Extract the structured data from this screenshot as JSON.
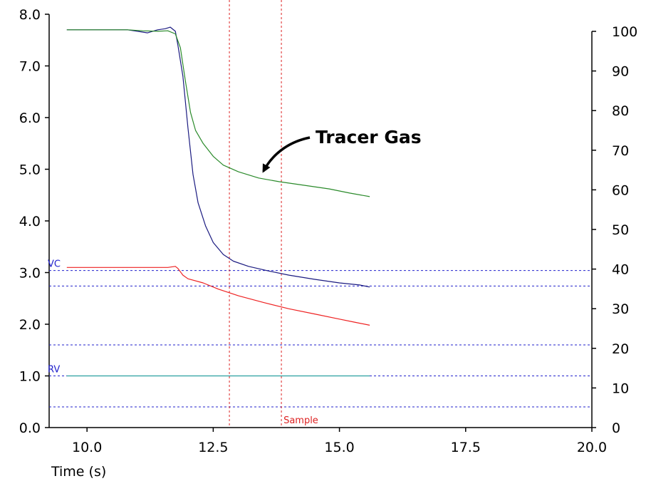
{
  "chart_data": {
    "type": "line",
    "title": "",
    "xlabel": "Time (s)",
    "ylabel": "",
    "xlim": [
      9.25,
      20.0
    ],
    "ylim_left": [
      0.0,
      8.0
    ],
    "ylim_right": [
      0,
      100
    ],
    "x_ticks": [
      "10.0",
      "12.5",
      "15.0",
      "17.5",
      "20.0"
    ],
    "y_left_ticks": [
      "0.0",
      "1.0",
      "2.0",
      "3.0",
      "4.0",
      "5.0",
      "6.0",
      "7.0",
      "8.0"
    ],
    "y_right_ticks": [
      "0",
      "10",
      "20",
      "30",
      "40",
      "50",
      "60",
      "70",
      "80",
      "90",
      "100"
    ],
    "reference_lines": [
      {
        "label": "VC",
        "y": 3.04,
        "color": "#2222cc"
      },
      {
        "label": "",
        "y": 2.74,
        "color": "#2222cc"
      },
      {
        "label": "",
        "y": 1.6,
        "color": "#2222cc"
      },
      {
        "label": "RV",
        "y": 1.0,
        "color": "#2222cc"
      },
      {
        "label": "",
        "y": 0.4,
        "color": "#2222cc"
      }
    ],
    "vertical_markers": [
      {
        "label": "",
        "x": 12.82,
        "color": "#dd2222"
      },
      {
        "label": "Sample",
        "x": 13.85,
        "color": "#dd2222"
      }
    ],
    "series": [
      {
        "color": "#1a1a80",
        "points": [
          [
            9.6,
            7.7
          ],
          [
            10.8,
            7.7
          ],
          [
            11.0,
            7.67
          ],
          [
            11.2,
            7.64
          ],
          [
            11.4,
            7.7
          ],
          [
            11.55,
            7.72
          ],
          [
            11.65,
            7.75
          ],
          [
            11.75,
            7.67
          ],
          [
            11.8,
            7.4
          ],
          [
            11.9,
            6.8
          ],
          [
            12.0,
            5.8
          ],
          [
            12.1,
            4.9
          ],
          [
            12.2,
            4.35
          ],
          [
            12.35,
            3.9
          ],
          [
            12.5,
            3.58
          ],
          [
            12.7,
            3.35
          ],
          [
            12.9,
            3.22
          ],
          [
            13.2,
            3.12
          ],
          [
            13.6,
            3.03
          ],
          [
            14.0,
            2.95
          ],
          [
            14.5,
            2.87
          ],
          [
            15.0,
            2.8
          ],
          [
            15.4,
            2.76
          ],
          [
            15.6,
            2.72
          ]
        ]
      },
      {
        "color": "#2a8a2a",
        "points": [
          [
            9.6,
            7.7
          ],
          [
            10.8,
            7.7
          ],
          [
            11.1,
            7.68
          ],
          [
            11.4,
            7.67
          ],
          [
            11.6,
            7.68
          ],
          [
            11.75,
            7.62
          ],
          [
            11.85,
            7.35
          ],
          [
            11.95,
            6.7
          ],
          [
            12.05,
            6.1
          ],
          [
            12.15,
            5.75
          ],
          [
            12.3,
            5.5
          ],
          [
            12.5,
            5.25
          ],
          [
            12.7,
            5.08
          ],
          [
            13.0,
            4.95
          ],
          [
            13.4,
            4.83
          ],
          [
            13.8,
            4.76
          ],
          [
            14.3,
            4.69
          ],
          [
            14.8,
            4.62
          ],
          [
            15.2,
            4.54
          ],
          [
            15.6,
            4.47
          ]
        ]
      },
      {
        "color": "#ee2222",
        "points": [
          [
            9.6,
            3.1
          ],
          [
            11.6,
            3.1
          ],
          [
            11.75,
            3.12
          ],
          [
            11.8,
            3.08
          ],
          [
            11.9,
            2.95
          ],
          [
            12.0,
            2.88
          ],
          [
            12.3,
            2.8
          ],
          [
            12.6,
            2.68
          ],
          [
            13.0,
            2.55
          ],
          [
            13.5,
            2.42
          ],
          [
            14.0,
            2.3
          ],
          [
            14.5,
            2.2
          ],
          [
            15.0,
            2.1
          ],
          [
            15.3,
            2.04
          ],
          [
            15.6,
            1.98
          ]
        ]
      },
      {
        "color": "#2aa0a0",
        "points": [
          [
            9.6,
            1.0
          ],
          [
            15.6,
            1.0
          ]
        ]
      }
    ],
    "annotations": [
      {
        "text": "Tracer Gas",
        "x": 14.8,
        "y": 5.55,
        "arrow_to": [
          13.45,
          4.92
        ]
      }
    ]
  }
}
